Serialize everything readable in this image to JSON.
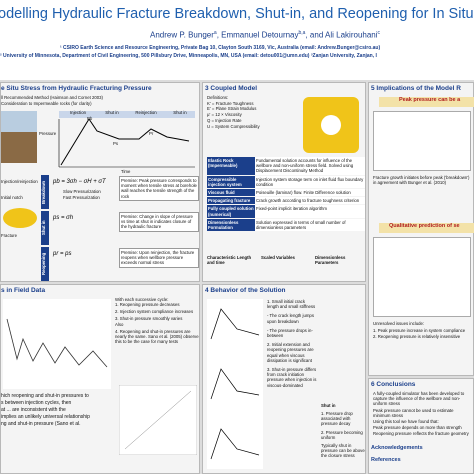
{
  "header": {
    "title": "odelling Hydraulic Fracture Breakdown, Shut-in, and Reopening for In Situ",
    "authors": [
      {
        "name": "Andrew P. Bunger",
        "mark": "a"
      },
      {
        "name": ", Emmanuel Detournay",
        "mark": "b,a"
      },
      {
        "name": ", and Ali Lakirouhani",
        "mark": "c"
      }
    ],
    "affiliations": [
      "¹ CSIRO Earth Science and Resource Engineering, Private Bag 10, Clayton South 3169, Vic, Australia (email: Andrew.Bunger@csiro.au)",
      "² University of Minnesota, Department of Civil Engineering, 500 Pillsbury Drive, Minneapolis, MN, USA (email: detou001@umn.edu)  ³Zanjan University, Zanjan, I"
    ]
  },
  "stress": {
    "heading": "e Situ Stress from Hydraulic Fracturing Pressure",
    "lines": [
      "ll Recommended Method (Haimson and Cornet 2003)",
      "Consideration to Impermeable rocks (for clarity)"
    ],
    "phases": [
      "Injection",
      "Shut in",
      "Reinjection",
      "Shut in"
    ],
    "axis": [
      "Pressure",
      "Time"
    ],
    "points": [
      "Pb",
      "Ps",
      "Pr"
    ],
    "sketch": [
      "Injection/reinjection",
      "Initial notch",
      "Fracture"
    ],
    "stages": [
      {
        "name": "Breakdown",
        "formula": "pb = 3σh − σH + σT",
        "notes": [
          "Slow Pressurization",
          "Fast Pressurization"
        ],
        "premise": "Premise: Peak pressure corresponds to moment when tensile stress at borehole wall reaches the tensile strength of the rock"
      },
      {
        "name": "Shut in",
        "formula": "ps = σh",
        "notes": [],
        "premise": "Premise: Change in slope of pressure vs time at shut in indicates closure of the hydraulic fracture"
      },
      {
        "name": "Reopening",
        "formula": "pr = ps",
        "notes": [],
        "premise": "Premise: Upon reinjection, the fracture reopens when wellbore pressure exceeds normal stress"
      }
    ]
  },
  "field": {
    "heading": "s in Field Data",
    "intro": "With each successive cycle:",
    "items": [
      "1. Reopening pressure decreases",
      "2. Injection system compliance increases",
      "3. Shut-in pressure smoothly varies",
      "Also",
      "4. Reopening and shut-in pressures are nearly the same. Sano et al. (2005) observe this to be the case for many tests"
    ],
    "bottom": [
      "hich reopening and shut-in pressures to",
      "s between injection cycles, then",
      "at ... are inconsistent with the",
      "implies an unlikely universal relationship",
      "ng and shut-in pressure (Sano et al."
    ]
  },
  "model": {
    "heading": "3 Coupled Model",
    "definitions": [
      "Definitions:",
      "K' = Fracture Toughness",
      "E' = Plane Strain Modulus",
      "μ' = 12 × Viscosity",
      "Q = Injection Rate",
      "U = System Compressibility"
    ],
    "rows": [
      [
        "Elastic Rock (Impermeable)",
        "Fundamental solution accounts for influence of the wellbore and non-uniform stress field. Solved using Displacement Discontinuity Method"
      ],
      [
        "Compressible injection system",
        "Injection system storage term on inlet fluid flux boundary condition"
      ],
      [
        "Viscous fluid",
        "Poiseuille (laminar) flow. Finite Difference solution"
      ],
      [
        "Propagating fracture",
        "Crack growth according to fracture toughness criterion"
      ],
      [
        "Fully coupled solution (numerical)",
        "Fixed-point implicit iteration algorithm"
      ],
      [
        "Dimensionless Formulation",
        "Solution expressed in terms of small number of dimensionless parameters"
      ]
    ],
    "scales": [
      "Characteristic Length and time",
      "Scaled Variables",
      "Dimensionless Parameters"
    ]
  },
  "behavior": {
    "heading": "4 Behavior of the Solution",
    "items": [
      "1. Small initial crack length and small stiffness",
      "- The crack length jumps upon breakdown",
      "- The pressure drops in-between",
      "2. Initial extension and reopening pressures are equal when viscous dissipation is significant",
      "3. Shut-in pressure differs from crack initiation pressure when injection is viscous-dominated"
    ],
    "shut": "Shut in",
    "shut_items": [
      "1. Pressure drop associated with pressure decay",
      "2. Pressure becoming uniform",
      "Typically shut in pressure can be above the closure stress"
    ]
  },
  "implications": {
    "heading": "5 Implications of the Model R",
    "peak": "Peak pressure can be a",
    "caption": "Fracture growth initiates before peak ('breakdown') in agreement with Bunger et al. (2010)",
    "qual": "Qualitative prediction of se",
    "issues": [
      "Unresolved issues include:",
      "1. Peak pressure increase in system compliance",
      "2. Reopening pressure is relatively insensitive"
    ]
  },
  "conclusions": {
    "heading": "6 Conclusions",
    "items": [
      "A fully-coupled simulator has been developed to capture the influence of the wellbore and non-uniform stress",
      "Peak pressure cannot be used to estimate minimum stress",
      "Using this tool we have found that:",
      "Peak pressure depends on more than strength",
      "Reopening pressure reflects the fracture geometry"
    ],
    "ack": "Acknowledgements",
    "refs": "References"
  }
}
